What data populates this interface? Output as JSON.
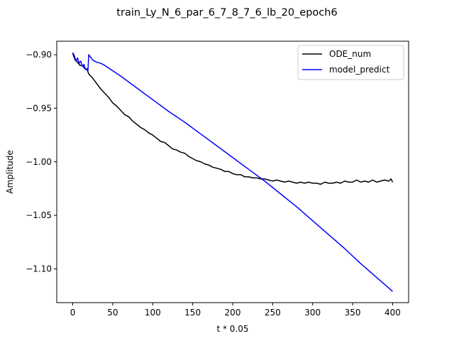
{
  "chart_data": {
    "type": "line",
    "title": "train_Ly_N_6_par_6_7_8_7_6_lb_20_epoch6",
    "xlabel": "t * 0.05",
    "ylabel": "Amplitude",
    "xlim": [
      -20,
      420
    ],
    "ylim": [
      -1.1315,
      -0.8874
    ],
    "xticks": [
      0,
      50,
      100,
      150,
      200,
      250,
      300,
      350,
      400
    ],
    "xtick_labels": [
      "0",
      "50",
      "100",
      "150",
      "200",
      "250",
      "300",
      "350",
      "400"
    ],
    "yticks": [
      -0.9,
      -0.95,
      -1.0,
      -1.05,
      -1.1
    ],
    "ytick_labels": [
      "−0.90",
      "−0.95",
      "−1.00",
      "−1.05",
      "−1.10"
    ],
    "grid": false,
    "legend_position": "upper right",
    "series": [
      {
        "name": "ODE_num",
        "color": "#000000",
        "x": [
          0,
          3,
          6,
          9,
          12,
          15,
          18,
          20,
          25,
          30,
          35,
          40,
          45,
          50,
          55,
          60,
          65,
          70,
          75,
          80,
          85,
          90,
          95,
          100,
          105,
          110,
          115,
          120,
          125,
          130,
          135,
          140,
          145,
          150,
          155,
          160,
          165,
          170,
          175,
          180,
          185,
          190,
          195,
          200,
          205,
          210,
          215,
          220,
          225,
          230,
          235,
          240,
          245,
          250,
          255,
          260,
          265,
          270,
          275,
          280,
          285,
          290,
          295,
          300,
          305,
          310,
          315,
          320,
          325,
          330,
          335,
          340,
          345,
          350,
          355,
          360,
          365,
          370,
          375,
          380,
          385,
          390,
          395,
          398,
          400
        ],
        "y": [
          -0.899,
          -0.905,
          -0.907,
          -0.91,
          -0.91,
          -0.913,
          -0.914,
          -0.918,
          -0.922,
          -0.927,
          -0.932,
          -0.936,
          -0.94,
          -0.945,
          -0.948,
          -0.952,
          -0.956,
          -0.958,
          -0.962,
          -0.965,
          -0.968,
          -0.97,
          -0.973,
          -0.975,
          -0.978,
          -0.981,
          -0.982,
          -0.985,
          -0.988,
          -0.989,
          -0.991,
          -0.992,
          -0.995,
          -0.997,
          -0.999,
          -1.0,
          -1.002,
          -1.003,
          -1.005,
          -1.006,
          -1.007,
          -1.009,
          -1.009,
          -1.011,
          -1.012,
          -1.012,
          -1.014,
          -1.014,
          -1.015,
          -1.015,
          -1.016,
          -1.016,
          -1.017,
          -1.018,
          -1.017,
          -1.018,
          -1.019,
          -1.018,
          -1.019,
          -1.02,
          -1.019,
          -1.02,
          -1.019,
          -1.02,
          -1.02,
          -1.021,
          -1.019,
          -1.02,
          -1.02,
          -1.019,
          -1.02,
          -1.018,
          -1.019,
          -1.019,
          -1.017,
          -1.019,
          -1.018,
          -1.019,
          -1.017,
          -1.019,
          -1.018,
          -1.017,
          -1.018,
          -1.016,
          -1.019
        ]
      },
      {
        "name": "model_predict",
        "color": "#0000ff",
        "x": [
          0,
          2,
          4,
          6,
          8,
          10,
          12,
          14,
          16,
          18,
          19,
          20,
          22,
          25,
          30,
          35,
          40,
          50,
          60,
          80,
          100,
          120,
          140,
          160,
          180,
          200,
          220,
          240,
          260,
          280,
          300,
          320,
          340,
          360,
          380,
          400
        ],
        "y": [
          -0.898,
          -0.901,
          -0.906,
          -0.903,
          -0.908,
          -0.906,
          -0.911,
          -0.909,
          -0.914,
          -0.913,
          -0.915,
          -0.9,
          -0.902,
          -0.905,
          -0.907,
          -0.908,
          -0.91,
          -0.915,
          -0.92,
          -0.931,
          -0.942,
          -0.953,
          -0.963,
          -0.974,
          -0.985,
          -0.996,
          -1.007,
          -1.018,
          -1.03,
          -1.042,
          -1.055,
          -1.068,
          -1.081,
          -1.095,
          -1.108,
          -1.121
        ]
      }
    ]
  }
}
